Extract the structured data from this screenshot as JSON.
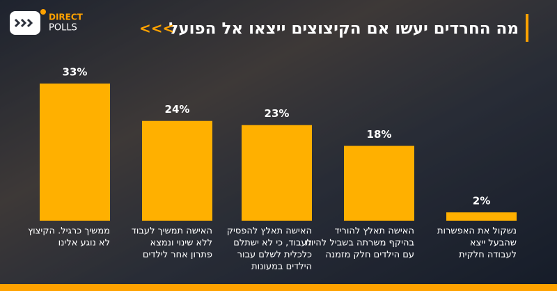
{
  "logo": {
    "line1": "DIRECT",
    "line2": "POLLS"
  },
  "chart_data": {
    "type": "bar",
    "title": "מה החרדים יעשו אם הקיצוצים ייצאו אל הפועל",
    "title_arrows": "<<<",
    "categories": [
      [
        "ממשיך כרגיל. הקיצוץ",
        "לא נוגע אלינו"
      ],
      [
        "האישה תמשיך לעבוד",
        "ללא שינוי ונמצא",
        "פתרון אחר לילדים"
      ],
      [
        "האישה תאלץ להפסיק",
        "לעבוד, כי לא ישתלם",
        "כלכלית לשלם עבור",
        "הילדים במעונות"
      ],
      [
        "האישה תאלץ להוריד",
        "בהיקף משרתה בשביל להיות",
        "עם הילדים חלק מזמנה"
      ],
      [
        "נשקול את האפשרות",
        "שהבעל ייצא",
        "לעבודה חלקית"
      ]
    ],
    "values": [
      33,
      24,
      23,
      18,
      2
    ],
    "value_labels": [
      "33%",
      "24%",
      "23%",
      "18%",
      "2%"
    ],
    "color": "#ffb000"
  }
}
